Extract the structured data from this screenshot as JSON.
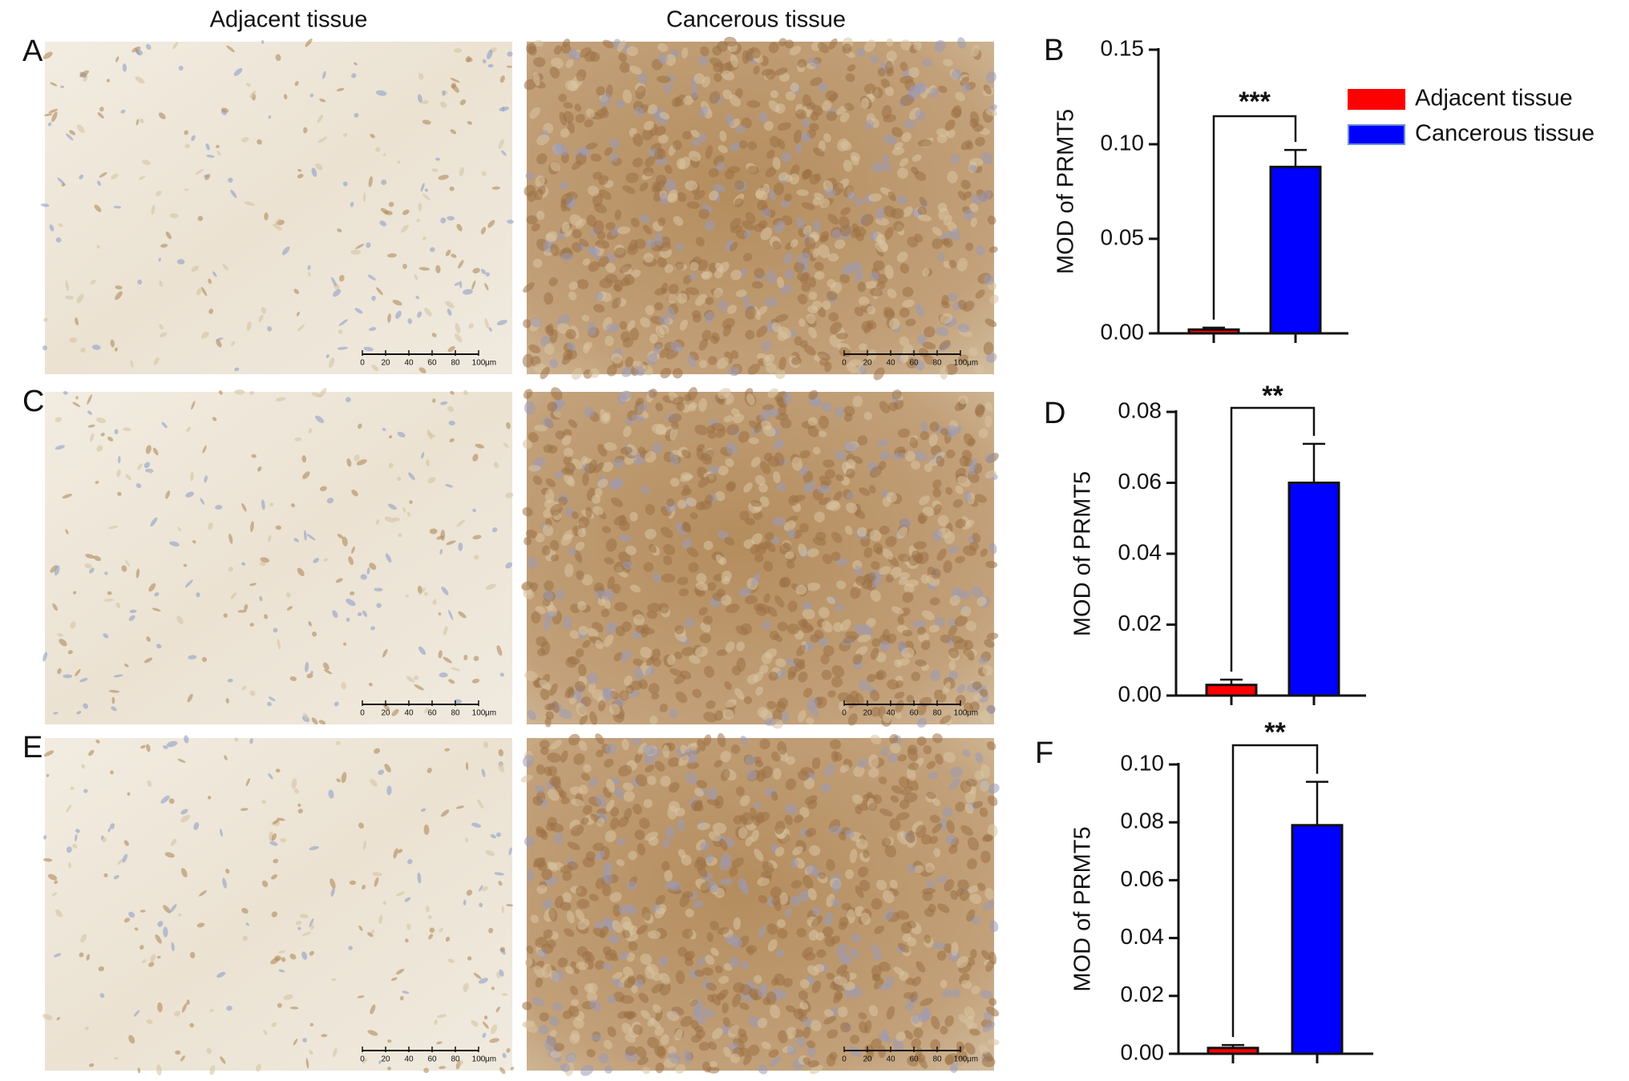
{
  "images": {
    "column_titles": [
      "Adjacent tissue",
      "Cancerous tissue"
    ],
    "panels": [
      "A",
      "C",
      "E"
    ],
    "scale_bar": {
      "ticks": [
        0,
        20,
        40,
        60,
        80,
        100
      ],
      "unit": "μm"
    }
  },
  "chart_data": [
    {
      "type": "bar",
      "panel": "B",
      "ylabel": "MOD of PRMT5",
      "significance": "***",
      "legend": true,
      "ylim": [
        0,
        0.15
      ],
      "yticks": [
        {
          "value": 0,
          "label": "0.00"
        },
        {
          "value": 0.05,
          "label": "0.05"
        },
        {
          "value": 0.1,
          "label": "0.10"
        },
        {
          "value": 0.15,
          "label": "0.15"
        }
      ],
      "series": [
        {
          "name": "Adjacent tissue",
          "color": "#ff0000",
          "values": [
            0.002
          ],
          "errors": [
            0.001
          ]
        },
        {
          "name": "Cancerous tissue",
          "color": "#0000ff",
          "values": [
            0.088
          ],
          "errors": [
            0.009
          ]
        }
      ]
    },
    {
      "type": "bar",
      "panel": "D",
      "ylabel": "MOD of PRMT5",
      "significance": "**",
      "legend": false,
      "ylim": [
        0,
        0.08
      ],
      "yticks": [
        {
          "value": 0,
          "label": "0.00"
        },
        {
          "value": 0.02,
          "label": "0.02"
        },
        {
          "value": 0.04,
          "label": "0.04"
        },
        {
          "value": 0.06,
          "label": "0.06"
        },
        {
          "value": 0.08,
          "label": "0.08"
        }
      ],
      "series": [
        {
          "color": "#ff0000",
          "values": [
            0.003
          ],
          "errors": [
            0.0015
          ]
        },
        {
          "color": "#0000ff",
          "values": [
            0.06
          ],
          "errors": [
            0.011
          ]
        }
      ]
    },
    {
      "type": "bar",
      "panel": "F",
      "ylabel": "MOD of PRMT5",
      "significance": "**",
      "legend": false,
      "ylim": [
        0,
        0.1
      ],
      "yticks": [
        {
          "value": 0,
          "label": "0.00"
        },
        {
          "value": 0.02,
          "label": "0.02"
        },
        {
          "value": 0.04,
          "label": "0.04"
        },
        {
          "value": 0.06,
          "label": "0.06"
        },
        {
          "value": 0.08,
          "label": "0.08"
        },
        {
          "value": 0.1,
          "label": "0.10"
        }
      ],
      "series": [
        {
          "color": "#ff0000",
          "values": [
            0.002
          ],
          "errors": [
            0.001
          ]
        },
        {
          "color": "#0000ff",
          "values": [
            0.079
          ],
          "errors": [
            0.015
          ]
        }
      ]
    }
  ]
}
